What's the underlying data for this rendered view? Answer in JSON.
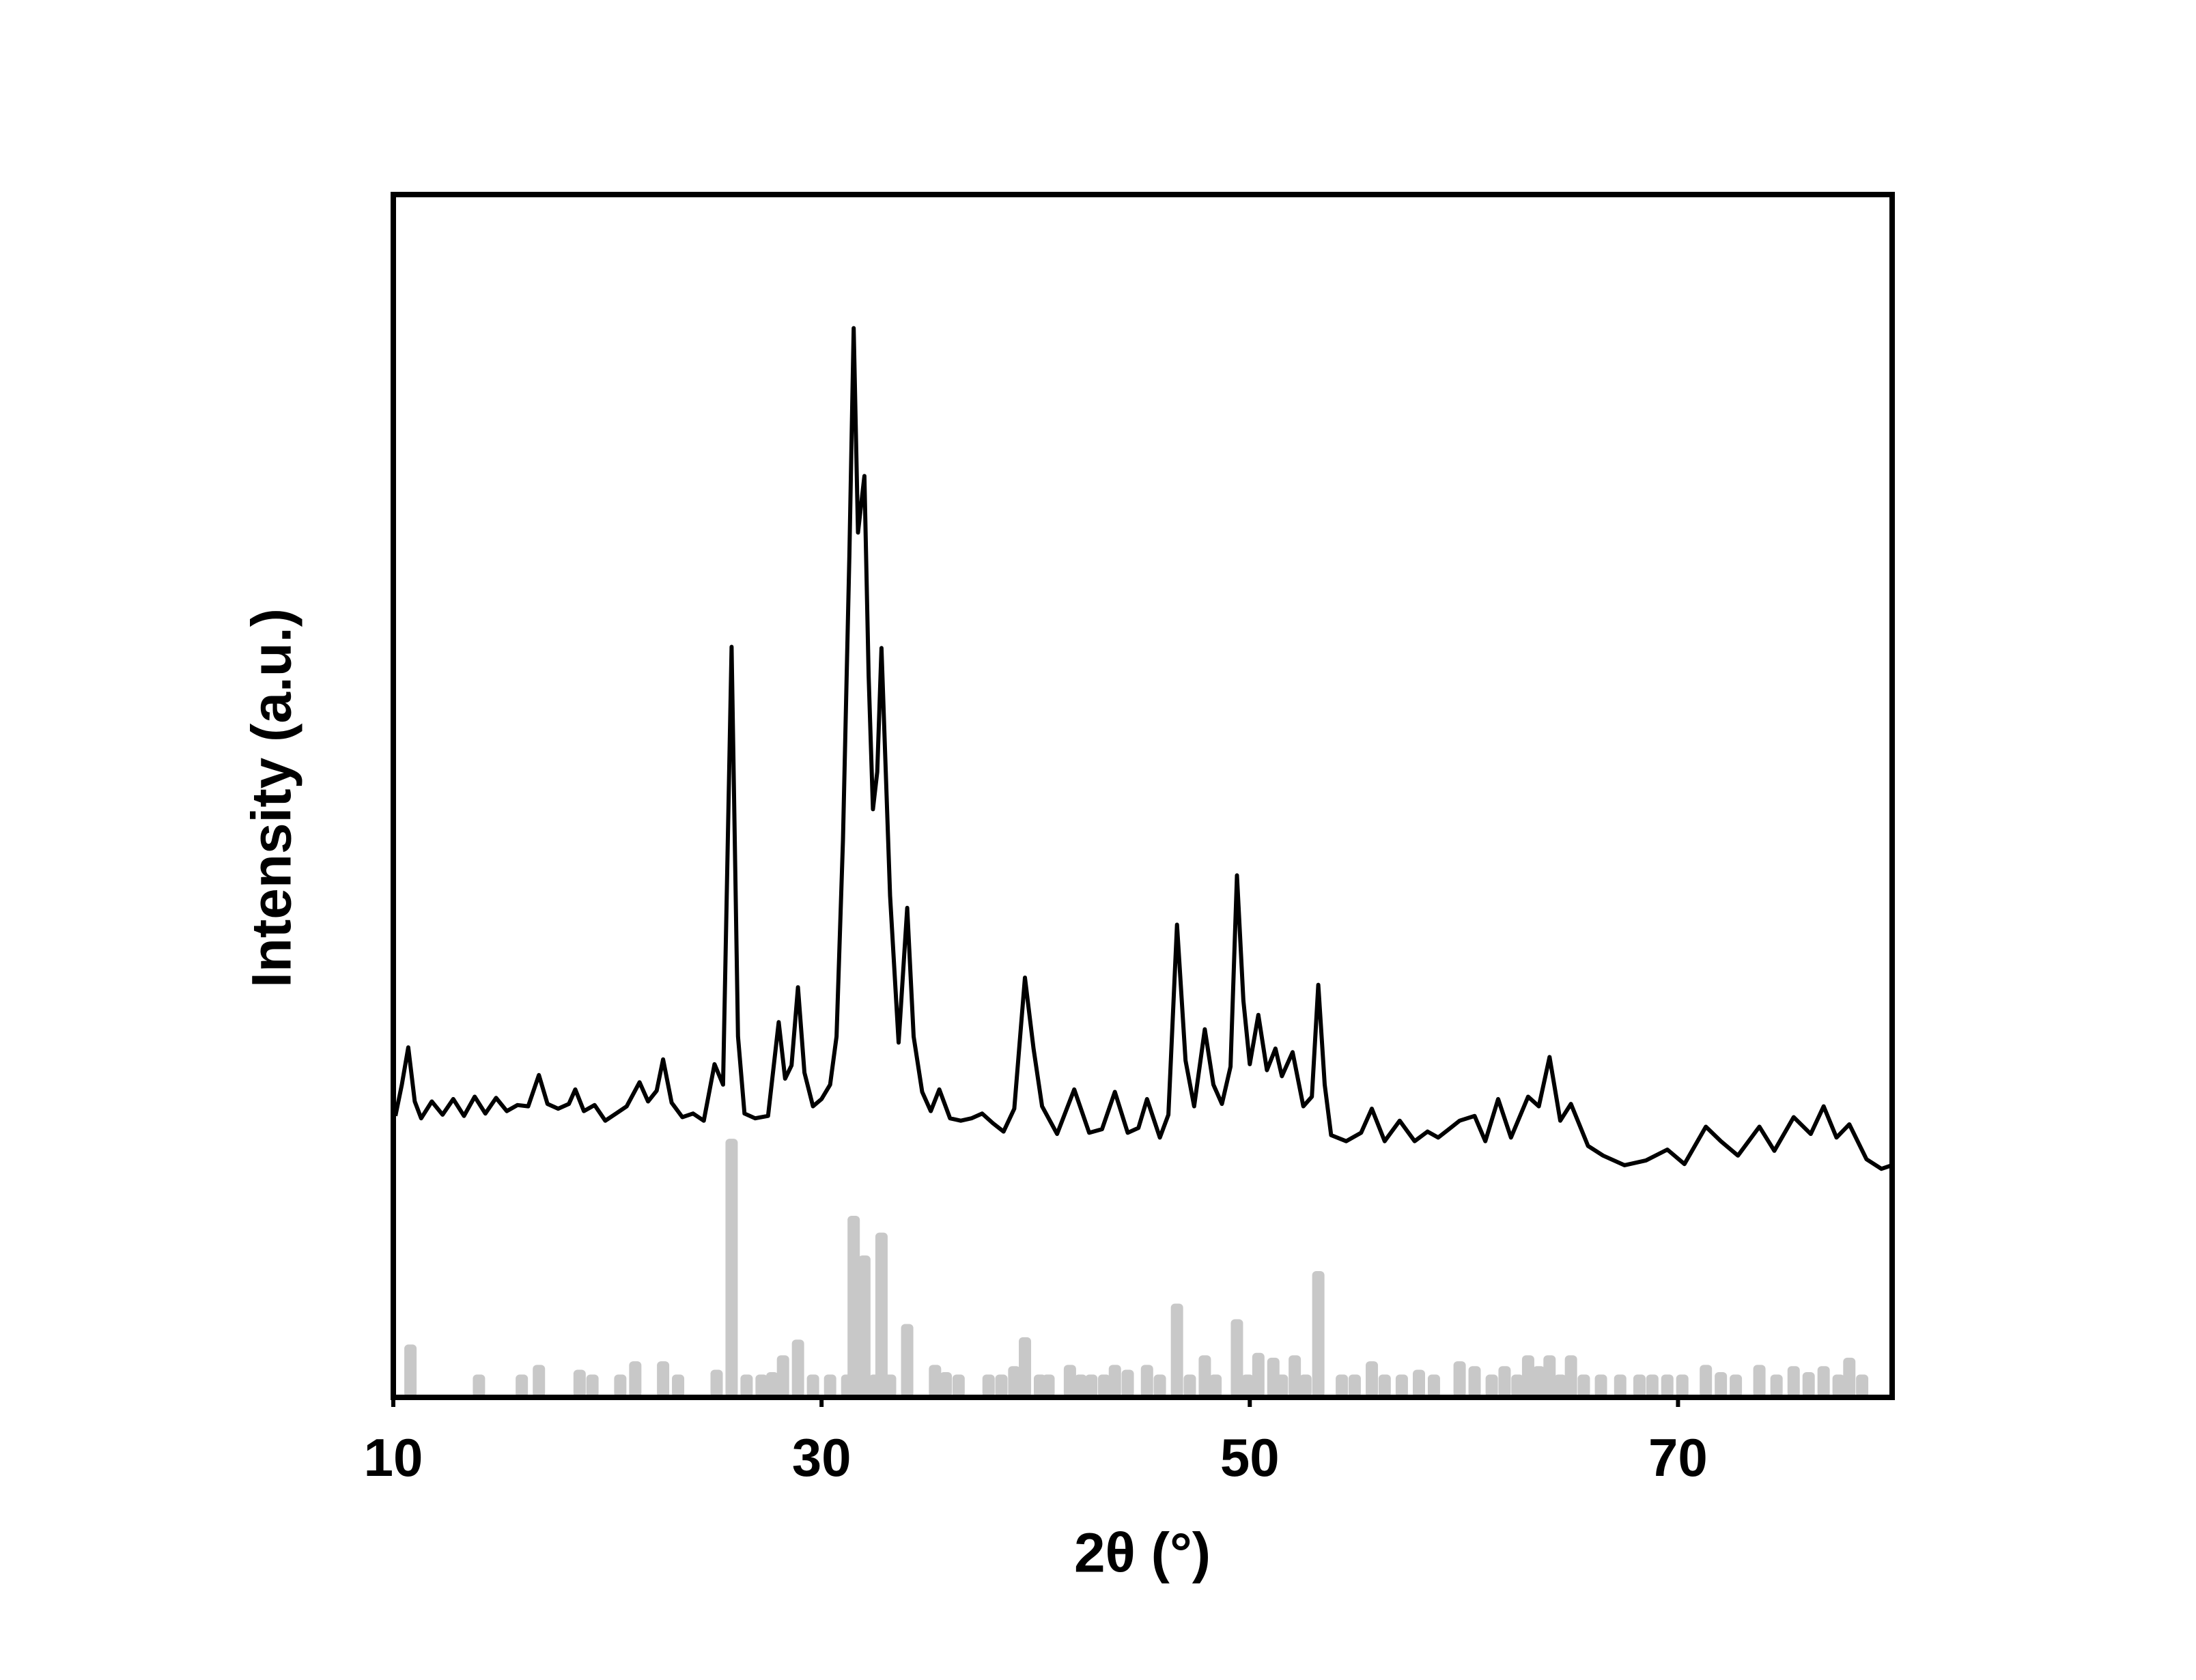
{
  "chart_data": {
    "type": "line",
    "xlabel": "2θ (°)",
    "ylabel": "Intensity (a.u.)",
    "xlim": [
      10,
      80
    ],
    "xticks": [
      10,
      30,
      50,
      70
    ],
    "ylim": [
      0,
      100
    ],
    "series": [
      {
        "color": "#000000",
        "x": [
          10.1,
          10.4,
          10.7,
          11.0,
          11.3,
          11.8,
          12.3,
          12.8,
          13.3,
          13.8,
          14.3,
          14.8,
          15.3,
          15.8,
          16.3,
          16.8,
          17.2,
          17.7,
          18.2,
          18.5,
          18.9,
          19.4,
          19.9,
          20.4,
          20.9,
          21.5,
          21.9,
          22.3,
          22.6,
          23.0,
          23.5,
          24.0,
          24.5,
          25.0,
          25.4,
          25.8,
          26.1,
          26.4,
          26.9,
          27.5,
          28.0,
          28.3,
          28.6,
          28.9,
          29.2,
          29.6,
          30.0,
          30.4,
          30.7,
          31.0,
          31.3,
          31.5,
          31.7,
          32.0,
          32.2,
          32.4,
          32.6,
          32.8,
          33.0,
          33.2,
          33.6,
          34.0,
          34.3,
          34.7,
          35.1,
          35.5,
          36.0,
          36.5,
          37.0,
          37.5,
          38.0,
          38.5,
          39.0,
          39.5,
          39.9,
          40.3,
          41.0,
          41.8,
          42.5,
          43.1,
          43.7,
          44.3,
          44.8,
          45.2,
          45.8,
          46.2,
          46.6,
          47.0,
          47.4,
          47.9,
          48.3,
          48.7,
          49.1,
          49.4,
          49.7,
          50.0,
          50.4,
          50.8,
          51.2,
          51.5,
          52.0,
          52.5,
          52.9,
          53.2,
          53.5,
          53.8,
          54.5,
          55.2,
          55.7,
          56.3,
          57.0,
          57.7,
          58.3,
          58.8,
          59.3,
          59.8,
          60.5,
          61.0,
          61.6,
          62.2,
          63.0,
          63.5,
          64.0,
          64.5,
          65.0,
          65.8,
          66.5,
          67.5,
          68.5,
          69.5,
          70.3,
          71.3,
          72.0,
          72.8,
          73.8,
          74.5,
          75.4,
          76.2,
          76.8,
          77.4,
          78.0,
          78.8,
          79.5,
          80.0
        ],
        "values": [
          23.4,
          26.0,
          29.1,
          24.6,
          23.2,
          24.6,
          23.5,
          24.8,
          23.4,
          25.0,
          23.6,
          24.9,
          23.8,
          24.3,
          24.2,
          26.8,
          24.4,
          24.0,
          24.4,
          25.6,
          23.8,
          24.3,
          23.0,
          23.6,
          24.2,
          26.2,
          24.6,
          25.5,
          28.1,
          24.5,
          23.3,
          23.6,
          23.0,
          27.7,
          26.0,
          62.4,
          30.0,
          23.6,
          23.2,
          23.4,
          31.2,
          26.5,
          27.6,
          34.1,
          27.0,
          24.2,
          24.8,
          26.0,
          30.0,
          46.3,
          70.0,
          88.9,
          71.9,
          76.6,
          60.0,
          48.9,
          52.0,
          62.3,
          52.0,
          41.7,
          29.5,
          40.7,
          30.0,
          25.4,
          23.8,
          25.6,
          23.2,
          23.0,
          23.2,
          23.6,
          22.8,
          22.1,
          24.0,
          34.9,
          29.0,
          24.2,
          21.9,
          25.6,
          22.0,
          22.3,
          25.4,
          22.0,
          22.4,
          24.8,
          21.6,
          23.5,
          39.3,
          28.0,
          24.2,
          30.6,
          26.0,
          24.4,
          27.5,
          43.4,
          33.0,
          27.7,
          31.8,
          27.2,
          29.0,
          26.7,
          28.7,
          24.2,
          25.0,
          34.3,
          26.0,
          21.8,
          21.3,
          22.0,
          24.0,
          21.3,
          23.0,
          21.3,
          22.1,
          21.6,
          22.3,
          23.0,
          23.4,
          21.3,
          24.8,
          21.6,
          25.0,
          24.2,
          28.3,
          23.0,
          24.4,
          20.9,
          20.1,
          19.3,
          19.7,
          20.6,
          19.4,
          22.5,
          21.3,
          20.1,
          22.5,
          20.5,
          23.3,
          21.9,
          24.2,
          21.6,
          22.7,
          19.8,
          19.0,
          19.3
        ]
      },
      {
        "color": "#c8c8c8",
        "type": "bar",
        "x": [
          10.8,
          14.0,
          16.0,
          16.8,
          18.7,
          19.3,
          20.6,
          21.3,
          22.6,
          23.3,
          25.1,
          25.8,
          26.5,
          27.2,
          27.7,
          28.2,
          28.9,
          29.6,
          30.4,
          31.2,
          31.5,
          32.0,
          32.5,
          32.8,
          33.2,
          34.0,
          35.3,
          35.8,
          36.4,
          37.8,
          38.4,
          39.0,
          39.5,
          40.2,
          40.6,
          41.6,
          42.1,
          42.6,
          43.2,
          43.7,
          44.3,
          45.2,
          45.8,
          46.6,
          47.2,
          47.9,
          48.4,
          49.4,
          49.9,
          50.4,
          51.1,
          51.5,
          52.1,
          52.6,
          53.2,
          54.3,
          54.9,
          55.7,
          56.3,
          57.1,
          57.9,
          58.6,
          59.8,
          60.5,
          61.3,
          61.9,
          62.5,
          63.0,
          63.5,
          64.0,
          64.5,
          65.0,
          65.6,
          66.4,
          67.3,
          68.2,
          68.8,
          69.5,
          70.2,
          71.3,
          72.0,
          72.7,
          73.8,
          74.6,
          75.4,
          76.1,
          76.8,
          77.5,
          78.0,
          78.6
        ],
        "values": [
          4.4,
          1.9,
          1.9,
          2.7,
          2.3,
          1.9,
          1.9,
          3.0,
          3.0,
          1.9,
          2.3,
          21.5,
          1.9,
          1.9,
          2.1,
          3.5,
          4.8,
          1.9,
          1.9,
          1.9,
          15.1,
          11.8,
          1.9,
          13.7,
          1.9,
          6.1,
          2.7,
          2.1,
          1.9,
          1.9,
          1.9,
          2.6,
          5.0,
          1.9,
          1.9,
          2.7,
          1.9,
          1.9,
          1.9,
          2.7,
          2.3,
          2.7,
          1.9,
          7.8,
          1.9,
          3.5,
          1.9,
          6.5,
          1.9,
          3.7,
          3.3,
          1.9,
          3.5,
          1.9,
          10.5,
          1.9,
          1.9,
          3.0,
          1.9,
          1.9,
          2.3,
          1.9,
          3.0,
          2.6,
          1.9,
          2.6,
          1.9,
          3.5,
          2.6,
          3.5,
          1.9,
          3.5,
          1.9,
          1.9,
          1.9,
          1.9,
          1.9,
          1.9,
          1.9,
          2.7,
          2.1,
          1.9,
          2.7,
          1.9,
          2.6,
          2.1,
          2.6,
          1.9,
          3.3,
          1.9
        ]
      }
    ]
  }
}
